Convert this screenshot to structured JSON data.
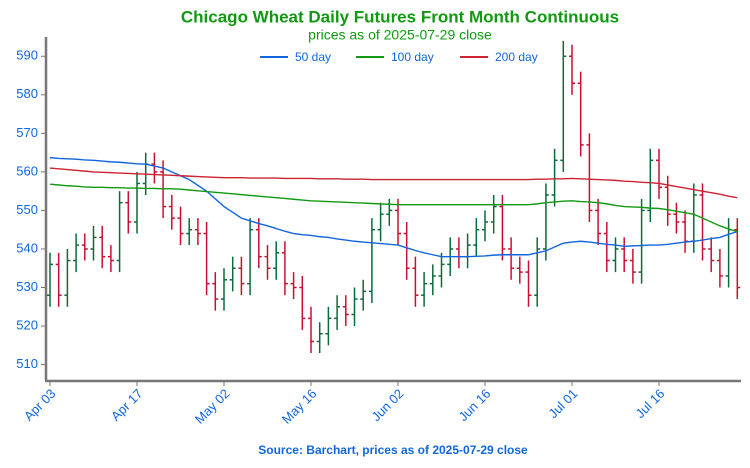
{
  "chart_data": {
    "type": "ohlc",
    "title": "Chicago Wheat Daily Futures Front Month Continuous",
    "subtitle": "prices as of 2025-07-29 close",
    "source": "Source: Barchart, prices as of 2025-07-29 close",
    "categories": [
      "Apr 03",
      null,
      null,
      null,
      null,
      null,
      null,
      null,
      null,
      null,
      "Apr 17",
      null,
      null,
      null,
      null,
      null,
      null,
      null,
      null,
      null,
      "May 02",
      null,
      null,
      null,
      null,
      null,
      null,
      null,
      null,
      null,
      "May 16",
      null,
      null,
      null,
      null,
      null,
      null,
      null,
      null,
      null,
      "Jun 02",
      null,
      null,
      null,
      null,
      null,
      null,
      null,
      null,
      null,
      "Jun 16",
      null,
      null,
      null,
      null,
      null,
      null,
      null,
      null,
      null,
      "Jul 01",
      null,
      null,
      null,
      null,
      null,
      null,
      null,
      null,
      null,
      "Jul 16",
      null,
      null,
      null,
      null,
      null,
      null,
      null,
      null,
      null
    ],
    "open": [
      528,
      536,
      528,
      537,
      541,
      540,
      543,
      538,
      537,
      552,
      547,
      557,
      562,
      560,
      551,
      548,
      544,
      545,
      544,
      531,
      527,
      532,
      535,
      531,
      545,
      538,
      535,
      539,
      531,
      530,
      522,
      516,
      518,
      522,
      525,
      523,
      527,
      529,
      545,
      549,
      550,
      544,
      535,
      528,
      531,
      533,
      536,
      540,
      538,
      541,
      545,
      547,
      551,
      540,
      535,
      534,
      528,
      540,
      554,
      563,
      590,
      583,
      567,
      550,
      544,
      537,
      540,
      537,
      534,
      550,
      563,
      556,
      549,
      547,
      542,
      554,
      540,
      537,
      533,
      545
    ],
    "high": [
      539,
      539,
      540,
      544,
      544,
      546,
      546,
      541,
      555,
      555,
      560,
      565,
      565,
      563,
      554,
      551,
      548,
      548,
      547,
      534,
      535,
      538,
      538,
      548,
      548,
      541,
      542,
      542,
      534,
      533,
      525,
      521,
      525,
      528,
      528,
      530,
      532,
      548,
      552,
      553,
      553,
      547,
      538,
      534,
      536,
      539,
      543,
      543,
      544,
      548,
      550,
      554,
      554,
      543,
      538,
      537,
      543,
      557,
      566,
      594,
      593,
      586,
      570,
      553,
      547,
      543,
      543,
      540,
      553,
      566,
      566,
      559,
      552,
      550,
      557,
      557,
      543,
      540,
      548,
      548
    ],
    "low": [
      525,
      525,
      525,
      534,
      537,
      537,
      535,
      534,
      534,
      544,
      544,
      554,
      557,
      548,
      545,
      541,
      541,
      541,
      528,
      524,
      524,
      529,
      528,
      528,
      535,
      532,
      532,
      528,
      527,
      519,
      513,
      513,
      515,
      519,
      520,
      520,
      524,
      526,
      542,
      546,
      541,
      532,
      525,
      525,
      528,
      530,
      533,
      535,
      535,
      538,
      542,
      544,
      537,
      532,
      531,
      525,
      525,
      537,
      551,
      560,
      580,
      564,
      547,
      541,
      534,
      534,
      534,
      531,
      531,
      547,
      553,
      546,
      544,
      539,
      539,
      537,
      534,
      530,
      530,
      527
    ],
    "close": [
      536,
      528,
      537,
      541,
      540,
      543,
      538,
      537,
      552,
      547,
      557,
      562,
      560,
      551,
      548,
      544,
      545,
      544,
      531,
      527,
      532,
      535,
      531,
      545,
      538,
      535,
      539,
      531,
      530,
      522,
      516,
      518,
      522,
      525,
      523,
      527,
      529,
      545,
      549,
      550,
      544,
      535,
      528,
      531,
      533,
      536,
      540,
      538,
      541,
      545,
      547,
      551,
      540,
      535,
      534,
      528,
      540,
      554,
      563,
      590,
      583,
      567,
      550,
      544,
      537,
      540,
      537,
      534,
      550,
      563,
      556,
      549,
      547,
      542,
      554,
      540,
      537,
      533,
      545,
      530
    ],
    "up_color": "#0b6b3a",
    "down_color": "#c8102e",
    "series": [
      {
        "name": "50 day",
        "color": "#1166dd",
        "values": [
          563.7,
          563.5,
          563.4,
          563.3,
          563.1,
          563,
          562.8,
          562.6,
          562.5,
          562.3,
          562.1,
          562,
          561.5,
          561,
          560,
          559,
          558,
          556.5,
          555,
          553,
          551,
          549.5,
          548,
          547.3,
          546.6,
          546,
          545.3,
          544.6,
          544,
          543.7,
          543.5,
          543.2,
          543,
          542.6,
          542.3,
          542,
          541.8,
          541.6,
          541.4,
          541.2,
          541,
          540.3,
          539.6,
          539,
          538.5,
          538,
          538,
          538,
          538,
          538.1,
          538.2,
          538.4,
          538.5,
          538.5,
          538.5,
          538.5,
          539,
          539.5,
          540.5,
          541.5,
          541.8,
          542,
          541.8,
          541.5,
          541.2,
          541,
          540.7,
          540.8,
          540.9,
          541,
          541,
          541.2,
          541.5,
          541.8,
          542,
          542.3,
          542.7,
          543,
          543.8,
          544.5
        ]
      },
      {
        "name": "100 day",
        "color": "#119911",
        "values": [
          556.8,
          556.6,
          556.4,
          556.3,
          556.1,
          556,
          556,
          555.9,
          555.9,
          555.8,
          555.8,
          555.7,
          555.7,
          555.6,
          555.6,
          555.5,
          555.3,
          555.1,
          554.9,
          554.7,
          554.5,
          554.3,
          554.1,
          553.9,
          553.7,
          553.5,
          553.3,
          553.1,
          552.9,
          552.7,
          552.5,
          552.4,
          552.3,
          552.2,
          552.1,
          552,
          551.9,
          551.8,
          551.7,
          551.6,
          551.5,
          551.5,
          551.5,
          551.5,
          551.5,
          551.5,
          551.5,
          551.5,
          551.5,
          551.5,
          551.5,
          551.5,
          551.5,
          551.5,
          551.5,
          551.5,
          551.7,
          552,
          552.2,
          552.4,
          552.5,
          552.3,
          552.2,
          552,
          551.7,
          551.3,
          551,
          550.9,
          550.8,
          550.6,
          550.5,
          550.2,
          549.8,
          549.4,
          549,
          548,
          547,
          546,
          545.2,
          544.5
        ]
      },
      {
        "name": "200 day",
        "color": "#cc2233",
        "values": [
          561,
          560.8,
          560.6,
          560.4,
          560.2,
          560,
          559.9,
          559.8,
          559.7,
          559.6,
          559.5,
          559.4,
          559.3,
          559.2,
          559.1,
          559,
          558.9,
          558.8,
          558.7,
          558.6,
          558.5,
          558.5,
          558.5,
          558.4,
          558.4,
          558.4,
          558.4,
          558.3,
          558.3,
          558.3,
          558.3,
          558.2,
          558.2,
          558.2,
          558.1,
          558.1,
          558.1,
          558,
          558,
          558,
          558,
          558,
          558,
          558,
          558,
          558,
          558,
          558,
          558,
          558,
          558,
          558,
          558,
          558,
          558,
          558,
          558.1,
          558.1,
          558.2,
          558.2,
          558.3,
          558.2,
          558.1,
          558,
          557.9,
          557.8,
          557.6,
          557.5,
          557.3,
          557.2,
          557,
          556.6,
          556.2,
          555.8,
          555.4,
          555,
          554.6,
          554.2,
          553.7,
          553.3
        ]
      }
    ],
    "ylim": [
      506,
      595
    ],
    "yticks": [
      510,
      520,
      530,
      540,
      550,
      560,
      570,
      580,
      590
    ],
    "legend": "upper center"
  }
}
